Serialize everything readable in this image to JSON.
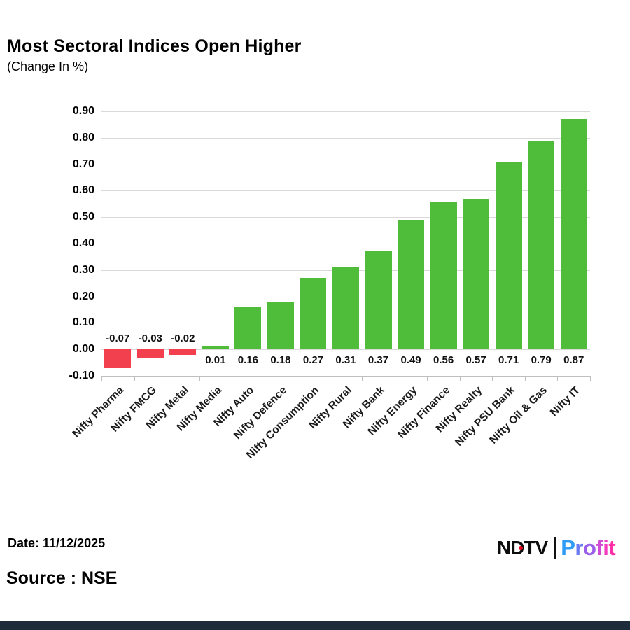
{
  "header": {
    "title": "Most Sectoral Indices Open Higher",
    "subtitle": "(Change In %)"
  },
  "chart_data": {
    "type": "bar",
    "title": "Most Sectoral Indices Open Higher",
    "subtitle": "(Change In %)",
    "categories": [
      "Nifty Pharma",
      "Nifty FMCG",
      "Nifty Metal",
      "Nifty Media",
      "Nifty Auto",
      "Nifty Defence",
      "Nifty Consumption",
      "Nifty Rural",
      "Nifty Bank",
      "Nifty Energy",
      "Nifty Finance",
      "Nifty Realty",
      "Nifty PSU Bank",
      "Nifty Oil & Gas",
      "Nifty IT"
    ],
    "values": [
      -0.07,
      -0.03,
      -0.02,
      0.01,
      0.16,
      0.18,
      0.27,
      0.31,
      0.37,
      0.49,
      0.56,
      0.57,
      0.71,
      0.79,
      0.87
    ],
    "value_labels": [
      "-0.07",
      "-0.03",
      "-0.02",
      "0.01",
      "0.16",
      "0.18",
      "0.27",
      "0.31",
      "0.37",
      "0.49",
      "0.56",
      "0.57",
      "0.71",
      "0.79",
      "0.87"
    ],
    "y_ticks": [
      "0.90",
      "0.80",
      "0.70",
      "0.60",
      "0.50",
      "0.40",
      "0.30",
      "0.20",
      "0.10",
      "0.00",
      "-0.10"
    ],
    "ylim": [
      -0.1,
      0.9
    ],
    "xlabel": "",
    "ylabel": "",
    "grid": true,
    "legend": false,
    "colors": {
      "positive": "#4fbd3a",
      "negative": "#f2404f",
      "gridline": "#d9d9d9",
      "axis": "#bfbfbf"
    }
  },
  "footer": {
    "date_label": "Date: 11/12/2025",
    "source_label": "Source : NSE",
    "logo": {
      "ndtv": "NDTV",
      "profit": "Profit",
      "profit_colors": [
        "#2e9bf7",
        "#6a79f2",
        "#9a5ee8",
        "#d14bd6",
        "#f23cc0",
        "#ff2fa8"
      ],
      "dot_color": "#e8001d"
    }
  },
  "bottom_bar_color": "#1e2b3b"
}
